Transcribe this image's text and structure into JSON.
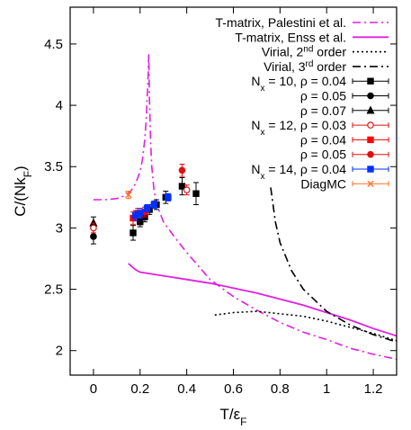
{
  "chart_data": {
    "type": "scatter",
    "xlabel": "T/ε",
    "xlabel_sub": "F",
    "ylabel": "C/(Nk",
    "ylabel_sub": "F",
    "ylabel_close": ")",
    "xlim": [
      -0.1,
      1.3
    ],
    "ylim": [
      1.8,
      4.8
    ],
    "xticks": [
      0,
      0.2,
      0.4,
      0.6,
      0.8,
      1,
      1.2
    ],
    "xtick_labels": [
      "0",
      "0.2",
      "0.4",
      "0.6",
      "0.8",
      "1",
      "1.2"
    ],
    "yticks": [
      2,
      2.5,
      3,
      3.5,
      4,
      4.5
    ],
    "ytick_labels": [
      "2",
      "2.5",
      "3",
      "3.5",
      "4",
      "4.5"
    ],
    "grid": false,
    "legend_position": "top-right",
    "lines": [
      {
        "key": "tmatrix_palestini",
        "name": "T-matrix, Palestini et al.",
        "color": "#e020e0",
        "style": "dashdot",
        "points": [
          [
            0,
            3.23
          ],
          [
            0.05,
            3.23
          ],
          [
            0.1,
            3.24
          ],
          [
            0.13,
            3.26
          ],
          [
            0.16,
            3.3
          ],
          [
            0.18,
            3.36
          ],
          [
            0.2,
            3.46
          ],
          [
            0.21,
            3.56
          ],
          [
            0.22,
            3.72
          ],
          [
            0.225,
            3.85
          ],
          [
            0.23,
            4.05
          ],
          [
            0.235,
            4.28
          ],
          [
            0.237,
            4.42
          ],
          [
            0.24,
            4.05
          ],
          [
            0.245,
            3.7
          ],
          [
            0.25,
            3.5
          ],
          [
            0.26,
            3.3
          ],
          [
            0.28,
            3.15
          ],
          [
            0.3,
            3.05
          ],
          [
            0.35,
            2.92
          ],
          [
            0.4,
            2.8
          ],
          [
            0.5,
            2.58
          ],
          [
            0.6,
            2.44
          ],
          [
            0.7,
            2.33
          ],
          [
            0.8,
            2.23
          ],
          [
            0.9,
            2.15
          ],
          [
            1.0,
            2.09
          ],
          [
            1.1,
            2.02
          ],
          [
            1.2,
            1.97
          ],
          [
            1.3,
            1.93
          ]
        ]
      },
      {
        "key": "tmatrix_enss",
        "name": "T-matrix, Enss et al.",
        "color": "#e020e0",
        "style": "solid",
        "points": [
          [
            0.15,
            2.71
          ],
          [
            0.18,
            2.66
          ],
          [
            0.2,
            2.64
          ],
          [
            0.3,
            2.61
          ],
          [
            0.4,
            2.58
          ],
          [
            0.5,
            2.55
          ],
          [
            0.6,
            2.51
          ],
          [
            0.7,
            2.47
          ],
          [
            0.8,
            2.42
          ],
          [
            0.9,
            2.37
          ],
          [
            1.0,
            2.31
          ],
          [
            1.1,
            2.25
          ],
          [
            1.2,
            2.18
          ],
          [
            1.3,
            2.12
          ]
        ]
      },
      {
        "key": "virial2",
        "name": "Virial, 2",
        "name_sup": "nd",
        "name_tail": " order",
        "color": "#000000",
        "style": "dotted",
        "points": [
          [
            0.52,
            2.29
          ],
          [
            0.6,
            2.31
          ],
          [
            0.7,
            2.32
          ],
          [
            0.8,
            2.3
          ],
          [
            0.9,
            2.28
          ],
          [
            1.0,
            2.24
          ],
          [
            1.1,
            2.19
          ],
          [
            1.2,
            2.14
          ],
          [
            1.3,
            2.08
          ]
        ]
      },
      {
        "key": "virial3",
        "name": "Virial, 3",
        "name_sup": "rd",
        "name_tail": " order",
        "color": "#000000",
        "style": "dashdot",
        "points": [
          [
            0.76,
            3.33
          ],
          [
            0.78,
            3.05
          ],
          [
            0.8,
            2.88
          ],
          [
            0.85,
            2.65
          ],
          [
            0.9,
            2.5
          ],
          [
            1.0,
            2.32
          ],
          [
            1.1,
            2.21
          ],
          [
            1.2,
            2.13
          ],
          [
            1.3,
            2.07
          ]
        ]
      }
    ],
    "series": [
      {
        "key": "n10_004",
        "name": "N",
        "name_sub": "x",
        "name_tail": " = 10, ρ = 0.04",
        "marker": "square",
        "color": "#000000",
        "filled": true,
        "points": [
          [
            0.17,
            2.96,
            0.06
          ],
          [
            0.2,
            3.05,
            0.04
          ],
          [
            0.22,
            3.09,
            0.04
          ],
          [
            0.24,
            3.15,
            0.04
          ],
          [
            0.27,
            3.19,
            0.04
          ],
          [
            0.31,
            3.25,
            0.05
          ],
          [
            0.38,
            3.34,
            0.07
          ],
          [
            0.44,
            3.28,
            0.09
          ]
        ]
      },
      {
        "key": "n10_005",
        "name": "ρ = 0.05",
        "marker": "circle",
        "color": "#000000",
        "filled": true,
        "points": [
          [
            0.0,
            2.93,
            0.06
          ]
        ]
      },
      {
        "key": "n10_007",
        "name": "ρ = 0.07",
        "marker": "triangle",
        "color": "#000000",
        "filled": true,
        "points": [
          [
            0.0,
            3.04,
            0.05
          ]
        ]
      },
      {
        "key": "n12_003",
        "name": "N",
        "name_sub": "x",
        "name_tail": " = 12, ρ = 0.03",
        "marker": "circle",
        "color": "#e01010",
        "filled": false,
        "points": [
          [
            0.0,
            3.0,
            0.04
          ],
          [
            0.4,
            3.31,
            0.04
          ]
        ]
      },
      {
        "key": "n12_004",
        "name": "ρ = 0.04",
        "marker": "square",
        "color": "#ff0000",
        "filled": true,
        "points": [
          [
            0.17,
            3.08,
            0.05
          ],
          [
            0.19,
            3.12,
            0.04
          ],
          [
            0.22,
            3.13,
            0.04
          ]
        ]
      },
      {
        "key": "n12_005",
        "name": "ρ = 0.05",
        "marker": "circle",
        "color": "#e01010",
        "filled": true,
        "points": [
          [
            0.38,
            3.47,
            0.05
          ]
        ]
      },
      {
        "key": "n14_004",
        "name": "N",
        "name_sub": "x",
        "name_tail": " = 14, ρ = 0.04",
        "marker": "square",
        "color": "#0030ff",
        "filled": true,
        "points": [
          [
            0.18,
            3.1,
            0.04
          ],
          [
            0.2,
            3.12,
            0.04
          ],
          [
            0.23,
            3.16,
            0.03
          ],
          [
            0.26,
            3.19,
            0.03
          ],
          [
            0.32,
            3.25,
            0.03
          ]
        ]
      },
      {
        "key": "diagmc",
        "name": "DiagMC",
        "marker": "cross",
        "color": "#ff7020",
        "filled": false,
        "points": [
          [
            0.15,
            3.27,
            0.03
          ]
        ]
      }
    ]
  }
}
